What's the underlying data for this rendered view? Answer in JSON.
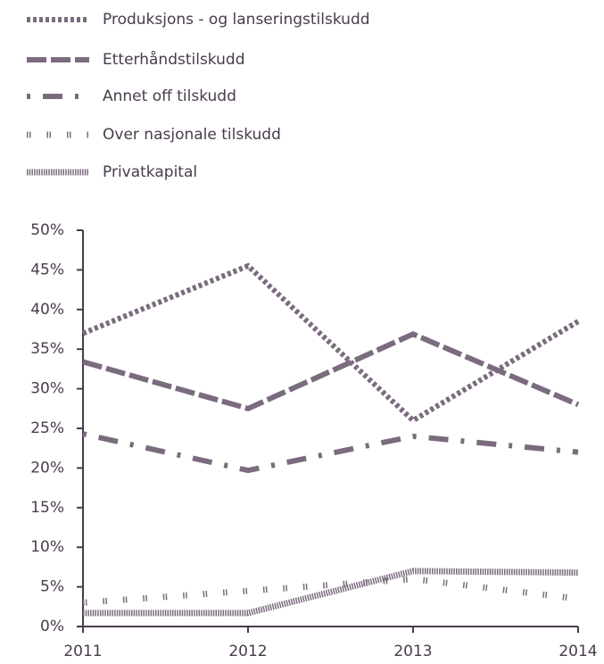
{
  "chart_data": {
    "type": "line",
    "x": [
      "2011",
      "2012",
      "2013",
      "2014"
    ],
    "series": [
      {
        "name": "Produksjons - og lanseringstilskudd",
        "color": "#7b6b7e",
        "dash": "4 3",
        "width": 6,
        "values": [
          37,
          45.5,
          26,
          38.5
        ]
      },
      {
        "name": "Etterhåndstilskudd",
        "color": "#7b6b7e",
        "dash": "22 5",
        "width": 6,
        "values": [
          33.4,
          27.5,
          36.9,
          28
        ]
      },
      {
        "name": "Annet off tilskudd",
        "color": "#7b6b7e",
        "dash": "4 14 22 14",
        "width": 6,
        "values": [
          24.3,
          19.7,
          24,
          22
        ]
      },
      {
        "name": "Over nasjonale tilskudd",
        "color": "#7b6b7e",
        "dash": "1.5 1.5 1.5 18",
        "width": 7,
        "values": [
          3,
          4.5,
          6,
          3.5
        ]
      },
      {
        "name": "Privatkapital",
        "color": "#7b6b7e",
        "dash": "1.5 1.2",
        "width": 7,
        "values": [
          1.7,
          1.7,
          7,
          6.8
        ]
      }
    ],
    "ylim": [
      0,
      50
    ],
    "yticks": [
      {
        "value": 0,
        "label": "0%"
      },
      {
        "value": 5,
        "label": "5%"
      },
      {
        "value": 10,
        "label": "10%"
      },
      {
        "value": 15,
        "label": "15%"
      },
      {
        "value": 20,
        "label": "20%"
      },
      {
        "value": 25,
        "label": "25%"
      },
      {
        "value": 30,
        "label": "30%"
      },
      {
        "value": 35,
        "label": "35%"
      },
      {
        "value": 40,
        "label": "40%"
      },
      {
        "value": 45,
        "label": "45%"
      },
      {
        "value": 50,
        "label": "50%"
      }
    ]
  }
}
